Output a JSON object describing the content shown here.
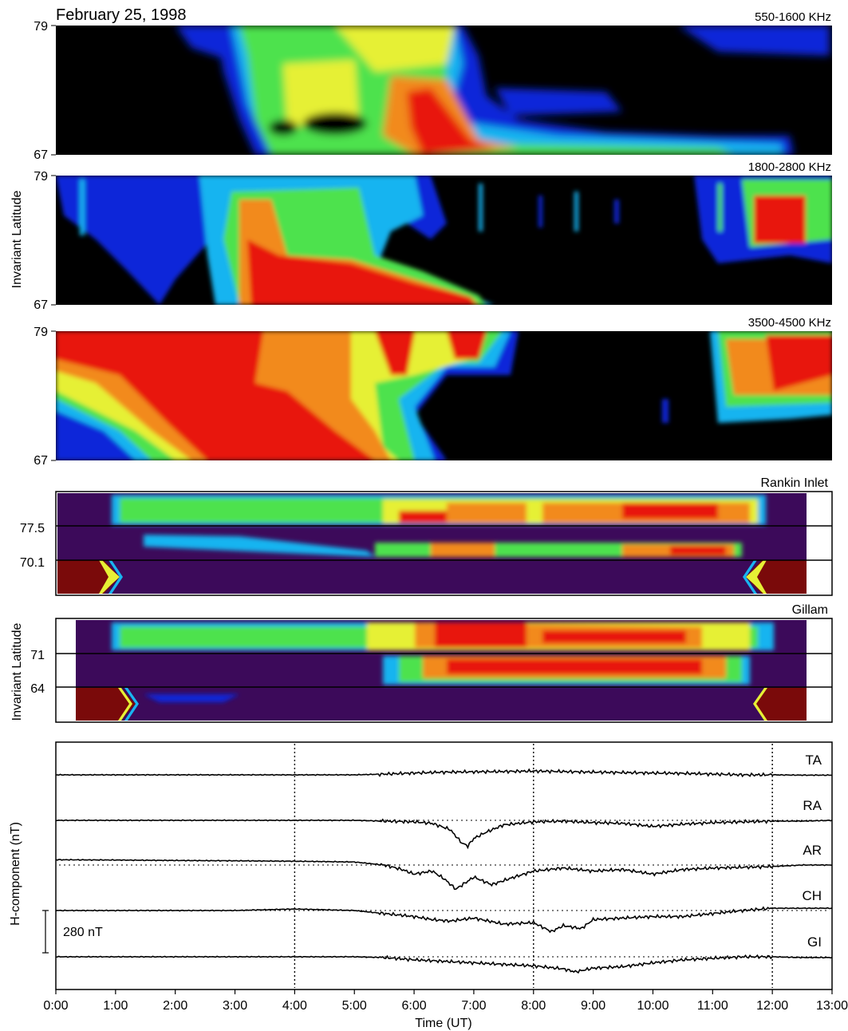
{
  "title": "February 25, 1998",
  "chart_data": [
    {
      "type": "heatmap",
      "band": "550-1600 KHz",
      "ylim": [
        67,
        79
      ],
      "yticks": [
        "79",
        "67"
      ]
    },
    {
      "type": "heatmap",
      "band": "1800-2800 KHz",
      "ylim": [
        67,
        79
      ],
      "yticks": [
        "79",
        "67"
      ],
      "ylabel": "Invariant Latitude"
    },
    {
      "type": "heatmap",
      "band": "3500-4500 KHz",
      "ylim": [
        67,
        79
      ],
      "yticks": [
        "79",
        "67"
      ]
    },
    {
      "type": "heatmap",
      "station": "Rankin Inlet",
      "yticks": [
        "77.5",
        "70.1"
      ]
    },
    {
      "type": "heatmap",
      "station": "Gillam",
      "yticks": [
        "71",
        "64"
      ],
      "ylabel": "Invariant Latitude"
    },
    {
      "type": "line",
      "ylabel": "H-component (nT)",
      "xlabel": "Time (UT)",
      "scale_bar": "280 nT",
      "xlim": [
        0,
        13
      ],
      "xtick_labels": [
        "0:00",
        "1:00",
        "2:00",
        "3:00",
        "4:00",
        "5:00",
        "6:00",
        "7:00",
        "8:00",
        "9:00",
        "10:00",
        "11:00",
        "12:00",
        "13:00"
      ],
      "dotted_time_markers": [
        4,
        8,
        12
      ],
      "series": [
        {
          "name": "TA",
          "x": [
            0,
            1,
            2,
            3,
            4,
            5,
            5.5,
            6,
            6.5,
            7,
            7.5,
            8,
            8.5,
            9,
            9.5,
            10,
            10.5,
            11,
            11.5,
            12,
            12.5,
            13
          ],
          "y": [
            0,
            0,
            0,
            0,
            0,
            0,
            5,
            12,
            18,
            20,
            22,
            25,
            22,
            18,
            15,
            12,
            10,
            5,
            0,
            0,
            -2,
            -2
          ]
        },
        {
          "name": "RA",
          "x": [
            0,
            1,
            2,
            3,
            4,
            5,
            5.5,
            6,
            6.3,
            6.6,
            6.8,
            6.9,
            7.0,
            7.2,
            7.5,
            8,
            8.5,
            9,
            9.5,
            10,
            10.5,
            11,
            11.5,
            12,
            12.5,
            13
          ],
          "y": [
            0,
            0,
            0,
            0,
            0,
            0,
            -5,
            -10,
            -20,
            -60,
            -150,
            -170,
            -120,
            -80,
            -30,
            -10,
            -5,
            -15,
            -20,
            -40,
            -25,
            -15,
            -10,
            -5,
            -5,
            0
          ]
        },
        {
          "name": "AR",
          "x": [
            0,
            1,
            2,
            3,
            4,
            5,
            5.5,
            5.8,
            6.0,
            6.3,
            6.5,
            6.7,
            7.0,
            7.3,
            7.6,
            8,
            8.5,
            9,
            9.5,
            10,
            10.5,
            11,
            11.5,
            12,
            12.5,
            13
          ],
          "y": [
            35,
            33,
            30,
            28,
            25,
            20,
            0,
            -30,
            -60,
            -40,
            -90,
            -160,
            -80,
            -130,
            -90,
            -40,
            -20,
            -40,
            -30,
            -60,
            -30,
            -20,
            -15,
            -10,
            0,
            0
          ]
        },
        {
          "name": "CH",
          "x": [
            0,
            1,
            2,
            3,
            4,
            4.5,
            5,
            5.5,
            6,
            6.3,
            6.6,
            7.0,
            7.5,
            8,
            8.3,
            8.5,
            8.8,
            9,
            9.5,
            10,
            10.5,
            11,
            11.5,
            12,
            12.5,
            13
          ],
          "y": [
            0,
            0,
            0,
            0,
            10,
            5,
            0,
            -20,
            -40,
            -60,
            -70,
            -50,
            -90,
            -80,
            -140,
            -100,
            -120,
            -60,
            -50,
            -40,
            -40,
            -20,
            0,
            15,
            15,
            15
          ]
        },
        {
          "name": "GI",
          "x": [
            0,
            1,
            2,
            3,
            4,
            5,
            5.5,
            6,
            6.5,
            7,
            7.5,
            8,
            8.5,
            8.7,
            9,
            9.5,
            10,
            10.5,
            11,
            11.5,
            12,
            12.5,
            13
          ],
          "y": [
            0,
            0,
            0,
            0,
            0,
            0,
            -5,
            -20,
            -30,
            -40,
            -50,
            -60,
            -80,
            -100,
            -75,
            -65,
            -40,
            -20,
            -10,
            0,
            0,
            -5,
            -5
          ]
        }
      ]
    }
  ]
}
